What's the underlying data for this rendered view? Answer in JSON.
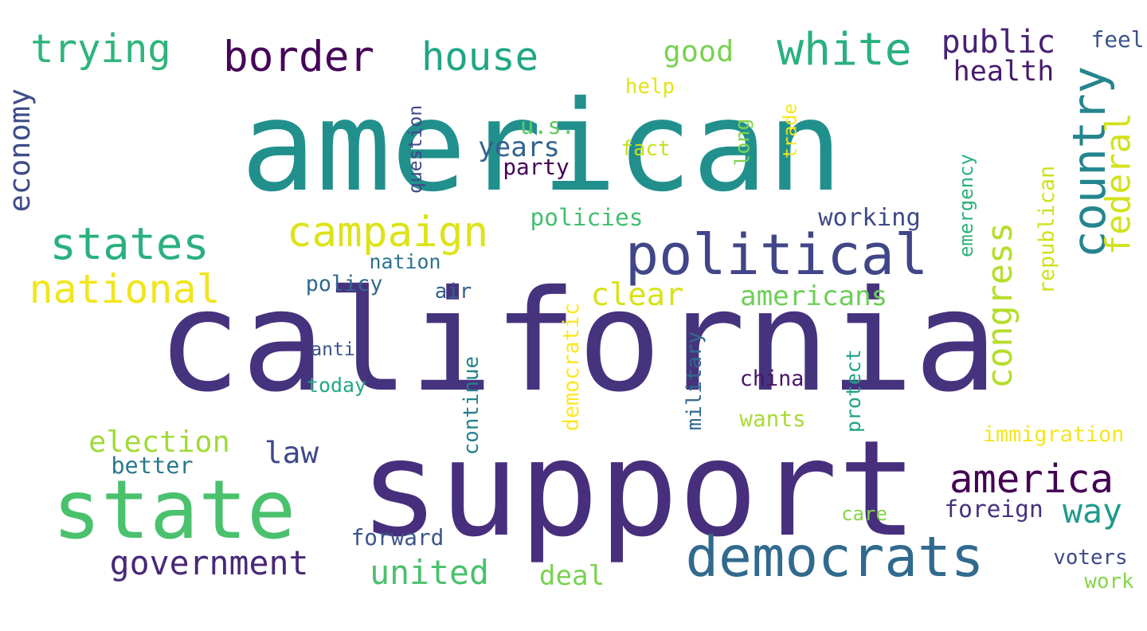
{
  "words": [
    {
      "text": "american",
      "color": "#21908d",
      "rotated": false
    },
    {
      "text": "california",
      "color": "#46337e",
      "rotated": false
    },
    {
      "text": "support",
      "color": "#472f7d",
      "rotated": false
    },
    {
      "text": "state",
      "color": "#4ac16d",
      "rotated": false
    },
    {
      "text": "political",
      "color": "#404688",
      "rotated": false
    },
    {
      "text": "democrats",
      "color": "#306a8e",
      "rotated": false
    },
    {
      "text": "border",
      "color": "#450559",
      "rotated": false
    },
    {
      "text": "white",
      "color": "#2ab07f",
      "rotated": false
    },
    {
      "text": "house",
      "color": "#21a685",
      "rotated": false
    },
    {
      "text": "trying",
      "color": "#2fb47c",
      "rotated": false
    },
    {
      "text": "states",
      "color": "#2ab07f",
      "rotated": false
    },
    {
      "text": "campaign",
      "color": "#dde318",
      "rotated": false
    },
    {
      "text": "national",
      "color": "#f1e51d",
      "rotated": false
    },
    {
      "text": "country",
      "color": "#25858e",
      "rotated": true
    },
    {
      "text": "america",
      "color": "#440154",
      "rotated": false
    },
    {
      "text": "way",
      "color": "#1f9a8a",
      "rotated": false
    },
    {
      "text": "public",
      "color": "#482173",
      "rotated": false
    },
    {
      "text": "health",
      "color": "#481a6c",
      "rotated": false
    },
    {
      "text": "good",
      "color": "#7ad151",
      "rotated": false
    },
    {
      "text": "feel",
      "color": "#3b528b",
      "rotated": false
    },
    {
      "text": "economy",
      "color": "#3e4c8a",
      "rotated": true
    },
    {
      "text": "federal",
      "color": "#d2e21b",
      "rotated": true
    },
    {
      "text": "congress",
      "color": "#b5de2b",
      "rotated": true
    },
    {
      "text": "election",
      "color": "#a0da39",
      "rotated": false
    },
    {
      "text": "government",
      "color": "#482878",
      "rotated": false
    },
    {
      "text": "united",
      "color": "#4ac16d",
      "rotated": false
    },
    {
      "text": "deal",
      "color": "#7ad151",
      "rotated": false
    },
    {
      "text": "americans",
      "color": "#6ece58",
      "rotated": false
    },
    {
      "text": "clear",
      "color": "#d8e219",
      "rotated": false
    },
    {
      "text": "years",
      "color": "#33638d",
      "rotated": false
    },
    {
      "text": "u.s.",
      "color": "#5ec962",
      "rotated": false
    },
    {
      "text": "party",
      "color": "#450457",
      "rotated": false
    },
    {
      "text": "fact",
      "color": "#c8e020",
      "rotated": false
    },
    {
      "text": "help",
      "color": "#e2e418",
      "rotated": false
    },
    {
      "text": "question",
      "color": "#3f4788",
      "rotated": true
    },
    {
      "text": "long",
      "color": "#7fd34e",
      "rotated": true
    },
    {
      "text": "trade",
      "color": "#f6e620",
      "rotated": true
    },
    {
      "text": "policies",
      "color": "#42be71",
      "rotated": false
    },
    {
      "text": "working",
      "color": "#3e4989",
      "rotated": false
    },
    {
      "text": "emergency",
      "color": "#2db27d",
      "rotated": true
    },
    {
      "text": "republican",
      "color": "#d0e11c",
      "rotated": true
    },
    {
      "text": "nation",
      "color": "#2c728e",
      "rotated": false
    },
    {
      "text": "policy",
      "color": "#31688e",
      "rotated": false
    },
    {
      "text": "air",
      "color": "#355f8d",
      "rotated": false
    },
    {
      "text": "anti",
      "color": "#39558c",
      "rotated": false
    },
    {
      "text": "today",
      "color": "#22a884",
      "rotated": false
    },
    {
      "text": "better",
      "color": "#2a788e",
      "rotated": false
    },
    {
      "text": "law",
      "color": "#3f4889",
      "rotated": false
    },
    {
      "text": "democratic",
      "color": "#fde725",
      "rotated": true
    },
    {
      "text": "military",
      "color": "#31688e",
      "rotated": true
    },
    {
      "text": "continue",
      "color": "#26828e",
      "rotated": true
    },
    {
      "text": "china",
      "color": "#481668",
      "rotated": false
    },
    {
      "text": "wants",
      "color": "#a8db34",
      "rotated": false
    },
    {
      "text": "protect",
      "color": "#20a386",
      "rotated": true
    },
    {
      "text": "immigration",
      "color": "#f4e61e",
      "rotated": false
    },
    {
      "text": "care",
      "color": "#84d44b",
      "rotated": false
    },
    {
      "text": "foreign",
      "color": "#46317e",
      "rotated": false
    },
    {
      "text": "forward",
      "color": "#39568c",
      "rotated": false
    },
    {
      "text": "voters",
      "color": "#3e4a89",
      "rotated": false
    },
    {
      "text": "work",
      "color": "#86d549",
      "rotated": false
    }
  ]
}
